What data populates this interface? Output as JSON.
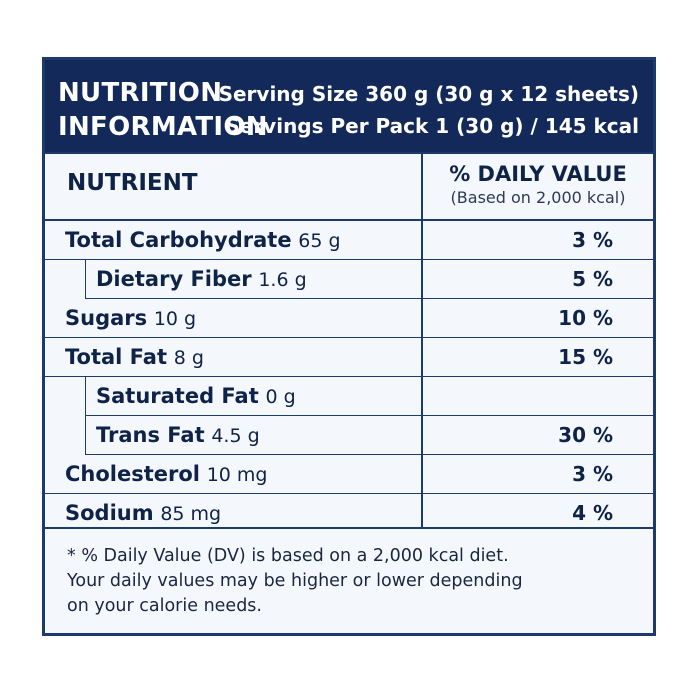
{
  "header": {
    "title_line1": "NUTRITION",
    "title_line2": "INFORMATION",
    "serving_size": "Serving Size 360 g (30 g x 12 sheets)",
    "servings_per_pack": "Servings Per Pack 1 (30 g) / 145 kcal"
  },
  "columns": {
    "nutrient": "NUTRIENT",
    "daily_value": "% DAILY VALUE",
    "daily_value_basis": "(Based on 2,000 kcal)"
  },
  "rows": [
    {
      "name": "Total Carbohydrate",
      "amount": "65 g",
      "dv": "3 %"
    },
    {
      "name": "Dietary Fiber",
      "amount": "1.6 g",
      "dv": "5 %"
    },
    {
      "name": "Sugars",
      "amount": "10 g",
      "dv": "10 %"
    },
    {
      "name": "Total Fat",
      "amount": "8 g",
      "dv": "15 %"
    },
    {
      "name": "Saturated Fat",
      "amount": "0 g",
      "dv": ""
    },
    {
      "name": "Trans Fat",
      "amount": "4.5 g",
      "dv": "30 %"
    },
    {
      "name": "Cholesterol",
      "amount": "10 mg",
      "dv": "3 %"
    },
    {
      "name": "Sodium",
      "amount": "85 mg",
      "dv": "4 %"
    }
  ],
  "footnote": {
    "line1": "* % Daily Value (DV) is based on a 2,000 kcal diet.",
    "line2": "Your daily values may be higher or lower depending",
    "line3": "on your calorie needs."
  },
  "colors": {
    "header_bg": "#13295a",
    "border": "#1c3a6c",
    "panel_bg": "#f4f8fd"
  }
}
